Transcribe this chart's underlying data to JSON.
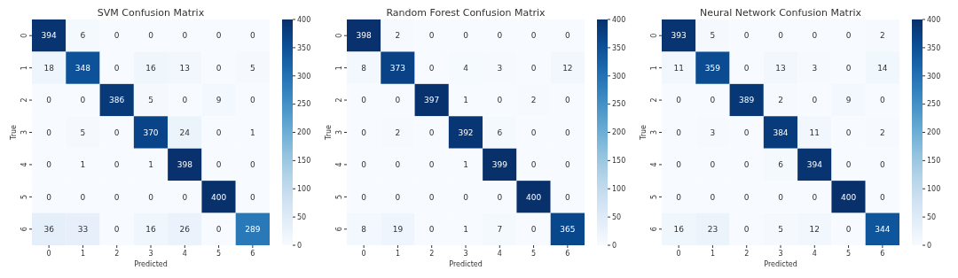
{
  "chart_data": [
    {
      "type": "heatmap",
      "title": "SVM Confusion Matrix",
      "xlabel": "Predicted",
      "ylabel": "True",
      "categories": [
        "0",
        "1",
        "2",
        "3",
        "4",
        "5",
        "6"
      ],
      "y_categories": [
        "0",
        "1",
        "2",
        "3",
        "4",
        "5",
        "6"
      ],
      "cells": [
        [
          394,
          6,
          0,
          0,
          0,
          0,
          0
        ],
        [
          18,
          348,
          0,
          16,
          13,
          0,
          5
        ],
        [
          0,
          0,
          386,
          5,
          0,
          9,
          0
        ],
        [
          0,
          5,
          0,
          370,
          24,
          0,
          1
        ],
        [
          0,
          1,
          0,
          1,
          398,
          0,
          0
        ],
        [
          0,
          0,
          0,
          0,
          0,
          400,
          0
        ],
        [
          36,
          33,
          0,
          16,
          26,
          0,
          289
        ]
      ],
      "clim": [
        0,
        400
      ],
      "cticks": [
        0,
        50,
        100,
        150,
        200,
        250,
        300,
        350,
        400
      ],
      "data_labels": true
    },
    {
      "type": "heatmap",
      "title": "Random Forest Confusion Matrix",
      "xlabel": "Predicted",
      "ylabel": "True",
      "categories": [
        "0",
        "1",
        "2",
        "3",
        "4",
        "5",
        "6"
      ],
      "y_categories": [
        "0",
        "1",
        "2",
        "3",
        "4",
        "5",
        "6"
      ],
      "cells": [
        [
          398,
          2,
          0,
          0,
          0,
          0,
          0
        ],
        [
          8,
          373,
          0,
          4,
          3,
          0,
          12
        ],
        [
          0,
          0,
          397,
          1,
          0,
          2,
          0
        ],
        [
          0,
          2,
          0,
          392,
          6,
          0,
          0
        ],
        [
          0,
          0,
          0,
          1,
          399,
          0,
          0
        ],
        [
          0,
          0,
          0,
          0,
          0,
          400,
          0
        ],
        [
          8,
          19,
          0,
          1,
          7,
          0,
          365
        ]
      ],
      "clim": [
        0,
        400
      ],
      "cticks": [
        0,
        50,
        100,
        150,
        200,
        250,
        300,
        350,
        400
      ],
      "data_labels": true
    },
    {
      "type": "heatmap",
      "title": "Neural Network Confusion Matrix",
      "xlabel": "Predicted",
      "ylabel": "True",
      "categories": [
        "0",
        "1",
        "2",
        "3",
        "4",
        "5",
        "6"
      ],
      "y_categories": [
        "0",
        "1",
        "2",
        "3",
        "4",
        "5",
        "6"
      ],
      "cells": [
        [
          393,
          5,
          0,
          0,
          0,
          0,
          2
        ],
        [
          11,
          359,
          0,
          13,
          3,
          0,
          14
        ],
        [
          0,
          0,
          389,
          2,
          0,
          9,
          0
        ],
        [
          0,
          3,
          0,
          384,
          11,
          0,
          2
        ],
        [
          0,
          0,
          0,
          6,
          394,
          0,
          0
        ],
        [
          0,
          0,
          0,
          0,
          0,
          400,
          0
        ],
        [
          16,
          23,
          0,
          5,
          12,
          0,
          344
        ]
      ],
      "clim": [
        0,
        400
      ],
      "cticks": [
        0,
        50,
        100,
        150,
        200,
        250,
        300,
        350,
        400
      ],
      "data_labels": true
    }
  ]
}
